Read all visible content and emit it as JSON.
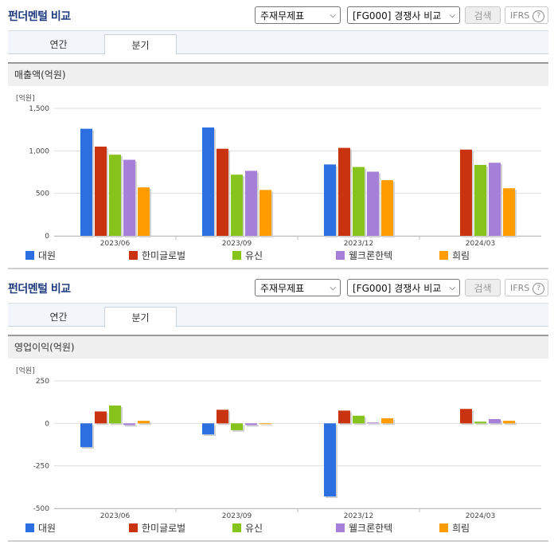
{
  "colors": {
    "daewon": "#2b6fe0",
    "hanmi": "#c9330f",
    "yusin": "#86c31d",
    "welcron": "#a57fd8",
    "heerim": "#ff9c00"
  },
  "panels": [
    {
      "title": "펀더멘털 비교",
      "select1": "주재무제표",
      "select2": "[FG000] 경쟁사 비교",
      "search_label": "검색",
      "ifrs_label": "IFRS",
      "ifrs_help": "?",
      "tabs": [
        {
          "label": "연간"
        },
        {
          "label": "분기"
        }
      ],
      "active_tab": 1,
      "metric_label": "매출액(억원)",
      "legend": [
        {
          "name": "대원",
          "color_key": "daewon"
        },
        {
          "name": "한미글로벌",
          "color_key": "hanmi"
        },
        {
          "name": "유신",
          "color_key": "yusin"
        },
        {
          "name": "웰크론한텍",
          "color_key": "welcron"
        },
        {
          "name": "희림",
          "color_key": "heerim"
        }
      ]
    },
    {
      "title": "펀더멘털 비교",
      "select1": "주재무제표",
      "select2": "[FG000] 경쟁사 비교",
      "search_label": "검색",
      "ifrs_label": "IFRS",
      "ifrs_help": "?",
      "tabs": [
        {
          "label": "연간"
        },
        {
          "label": "분기"
        }
      ],
      "active_tab": 1,
      "metric_label": "영업이익(억원)",
      "legend": [
        {
          "name": "대원",
          "color_key": "daewon"
        },
        {
          "name": "한미글로벌",
          "color_key": "hanmi"
        },
        {
          "name": "유신",
          "color_key": "yusin"
        },
        {
          "name": "웰크론한텍",
          "color_key": "welcron"
        },
        {
          "name": "희림",
          "color_key": "heerim"
        }
      ]
    }
  ],
  "chart_data": [
    {
      "type": "bar",
      "title": "매출액(억원)",
      "unit_label": "[억원]",
      "categories": [
        "2023/06",
        "2023/09",
        "2023/12",
        "2024/03"
      ],
      "yticks": [
        0,
        500,
        1000,
        1500
      ],
      "yticks_labels": [
        "0",
        "500",
        "1,000",
        "1,500"
      ],
      "ylim": [
        0,
        1500
      ],
      "grid": true,
      "legend_position": "bottom",
      "series": [
        {
          "name": "대원",
          "color_key": "daewon",
          "values": [
            1260,
            1275,
            840,
            null
          ]
        },
        {
          "name": "한미글로벌",
          "color_key": "hanmi",
          "values": [
            1050,
            1025,
            1035,
            1015
          ]
        },
        {
          "name": "유신",
          "color_key": "yusin",
          "values": [
            955,
            720,
            810,
            835
          ]
        },
        {
          "name": "웰크론한텍",
          "color_key": "welcron",
          "values": [
            895,
            765,
            755,
            860
          ]
        },
        {
          "name": "희림",
          "color_key": "heerim",
          "values": [
            570,
            540,
            655,
            560
          ]
        }
      ]
    },
    {
      "type": "bar",
      "title": "영업이익(억원)",
      "unit_label": "[억원]",
      "categories": [
        "2023/06",
        "2023/09",
        "2023/12",
        "2024/03"
      ],
      "yticks": [
        -500,
        -250,
        0,
        250
      ],
      "yticks_labels": [
        "-500",
        "-250",
        "0",
        "250"
      ],
      "ylim": [
        -500,
        250
      ],
      "grid": true,
      "legend_position": "bottom",
      "series": [
        {
          "name": "대원",
          "color_key": "daewon",
          "values": [
            -140,
            -65,
            -430,
            null
          ]
        },
        {
          "name": "한미글로벌",
          "color_key": "hanmi",
          "values": [
            70,
            80,
            75,
            85
          ]
        },
        {
          "name": "유신",
          "color_key": "yusin",
          "values": [
            105,
            -40,
            45,
            10
          ]
        },
        {
          "name": "웰크론한텍",
          "color_key": "welcron",
          "values": [
            -10,
            -10,
            5,
            25
          ]
        },
        {
          "name": "희림",
          "color_key": "heerim",
          "values": [
            15,
            0,
            30,
            15
          ]
        }
      ]
    }
  ]
}
